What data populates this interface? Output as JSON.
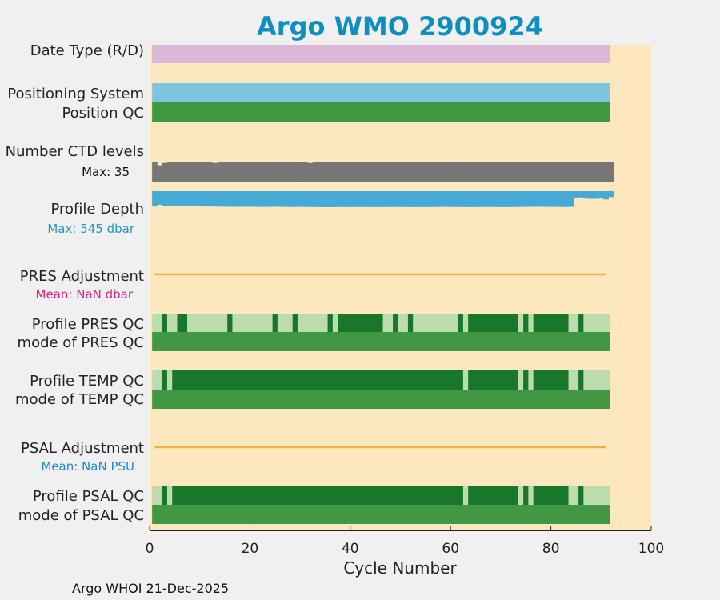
{
  "chart_data": {
    "type": "status-strip",
    "title": "Argo WMO 2900924",
    "xlabel": "Cycle Number",
    "xlim": [
      0,
      100
    ],
    "xticks": [
      "0",
      "20",
      "40",
      "60",
      "80",
      "100"
    ],
    "last_cycle": 91,
    "footer": "Argo WHOI 21-Dec-2025",
    "rows": {
      "date_type": "Date Type (R/D)",
      "positioning": "Positioning System",
      "position_qc": "Position QC",
      "ctd_levels": "Number CTD levels",
      "ctd_max": "Max: 35",
      "profile_depth": "Profile Depth",
      "depth_max": "Max:  545 dbar",
      "pres_adj": "PRES Adjustment",
      "pres_mean": "Mean:  NaN dbar",
      "profile_pres_qc": "Profile PRES QC",
      "mode_pres_qc": "mode of PRES QC",
      "profile_temp_qc": "Profile TEMP QC",
      "mode_temp_qc": "mode of TEMP QC",
      "psal_adj": "PSAL Adjustment",
      "psal_mean": "Mean:  NaN PSU",
      "profile_psal_qc": "Profile PSAL QC",
      "mode_psal_qc": "mode of PSAL QC"
    },
    "ctd_levels": [
      35,
      30,
      34,
      35,
      35,
      35,
      35,
      35,
      35,
      35,
      35,
      35,
      34,
      35,
      35,
      35,
      35,
      35,
      35,
      35,
      35,
      35,
      35,
      35,
      35,
      35,
      35,
      35,
      35,
      35,
      35,
      34,
      35,
      35,
      35,
      35,
      35,
      35,
      35,
      35,
      35,
      35,
      35,
      35,
      35,
      35,
      35,
      35,
      35,
      35,
      35,
      35,
      35,
      35,
      35,
      35,
      35,
      35,
      35,
      35,
      35,
      35,
      35,
      35,
      35,
      35,
      35,
      35,
      35,
      35,
      35,
      35,
      35,
      35,
      35,
      35,
      35,
      35,
      35,
      35,
      35,
      35,
      35,
      35,
      35,
      35,
      35,
      35,
      35,
      35,
      35,
      35
    ],
    "profile_depth": [
      520,
      460,
      505,
      510,
      500,
      500,
      505,
      510,
      512,
      515,
      520,
      520,
      522,
      525,
      528,
      530,
      532,
      530,
      528,
      530,
      532,
      535,
      535,
      532,
      530,
      532,
      535,
      538,
      536,
      534,
      536,
      538,
      540,
      542,
      544,
      545,
      540,
      538,
      540,
      542,
      540,
      538,
      540,
      540,
      542,
      540,
      540,
      538,
      536,
      538,
      540,
      542,
      540,
      540,
      542,
      540,
      538,
      536,
      534,
      536,
      538,
      540,
      542,
      542,
      540,
      538,
      536,
      538,
      540,
      542,
      544,
      540,
      538,
      536,
      534,
      532,
      530,
      528,
      532,
      534,
      535,
      536,
      538,
      530,
      240,
      210,
      250,
      260,
      255,
      250,
      280,
      200
    ],
    "profile_qc_good": [
      [
        2,
        3
      ],
      [
        5,
        7
      ],
      [
        15,
        16
      ],
      [
        24,
        25
      ],
      [
        28,
        29
      ],
      [
        35,
        36
      ],
      [
        37,
        46
      ],
      [
        48,
        49
      ],
      [
        51,
        52
      ],
      [
        61,
        62
      ],
      [
        63,
        73
      ],
      [
        74,
        75
      ],
      [
        76,
        83
      ],
      [
        85,
        86
      ]
    ],
    "profile_qc_good_temp_psal": [
      [
        2,
        3
      ],
      [
        4,
        62
      ],
      [
        63,
        73
      ],
      [
        74,
        75
      ],
      [
        76,
        83
      ],
      [
        85,
        86
      ]
    ],
    "colors": {
      "background": "#fde7bf",
      "date_type": "#dbb7d8",
      "positioning": "#7fc5df",
      "mode_qc": "#429842",
      "ctd": "#777777",
      "depth": "#45aad5",
      "adjustment_line": "#f5b041",
      "qc_light": "#bcdcb0",
      "qc_dark": "#18772a",
      "title": "#0f8fbf",
      "depth_stat": "#2a95c4",
      "pres_stat": "#e0207f",
      "psal_stat": "#1f8bc6"
    }
  }
}
